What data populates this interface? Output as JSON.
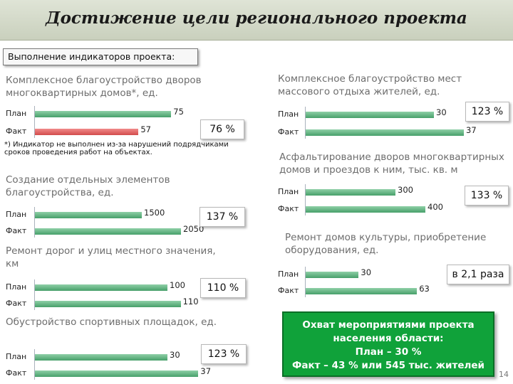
{
  "title": "Достижение цели регионального проекта",
  "subtitle": "Выполнение индикаторов проекта:",
  "row_labels": {
    "plan": "План",
    "fact": "Факт"
  },
  "colors": {
    "bar_green": "#47a06a",
    "bar_red": "#d24c4c",
    "highlight": "#10a23a",
    "title_gray": "#6d6d6d"
  },
  "footnote": "*) Индикатор не выполнен из-за нарушений подрядчиками сроков проведения работ на объектах.",
  "highlight": {
    "line1": "Охват мероприятиями проекта",
    "line2": "населения области:",
    "line3": "План – 30 %",
    "line4": "Факт – 43 % или 545 тыс. жителей"
  },
  "page_number": "14",
  "chart_data": [
    {
      "type": "bar",
      "orientation": "horizontal",
      "title": "Комплексное благоустройство дворов многоквартирных домов*, ед.",
      "categories": [
        "План",
        "Факт"
      ],
      "values": [
        75,
        57
      ],
      "value_labels": [
        "75",
        "57"
      ],
      "colors": [
        "green",
        "red"
      ],
      "percent": "76 %"
    },
    {
      "type": "bar",
      "orientation": "horizontal",
      "title": "Создание отдельных элементов благоустройства, ед.",
      "categories": [
        "План",
        "Факт"
      ],
      "values": [
        1500,
        2050
      ],
      "value_labels": [
        "1500",
        "2050"
      ],
      "colors": [
        "green",
        "green"
      ],
      "percent": "137 %"
    },
    {
      "type": "bar",
      "orientation": "horizontal",
      "title": "Ремонт дорог и улиц местного значения, км",
      "categories": [
        "План",
        "Факт"
      ],
      "values": [
        100,
        110
      ],
      "value_labels": [
        "100",
        "110"
      ],
      "colors": [
        "green",
        "green"
      ],
      "percent": "110 %"
    },
    {
      "type": "bar",
      "orientation": "horizontal",
      "title": "Обустройство спортивных площадок, ед.",
      "categories": [
        "План",
        "Факт"
      ],
      "values": [
        30,
        37
      ],
      "value_labels": [
        "30",
        "37"
      ],
      "colors": [
        "green",
        "green"
      ],
      "percent": "123 %"
    },
    {
      "type": "bar",
      "orientation": "horizontal",
      "title": "Комплексное благоустройство мест массового отдыха жителей, ед.",
      "categories": [
        "План",
        "Факт"
      ],
      "values": [
        30,
        37
      ],
      "value_labels": [
        "30",
        "37"
      ],
      "colors": [
        "green",
        "green"
      ],
      "percent": "123 %"
    },
    {
      "type": "bar",
      "orientation": "horizontal",
      "title": "Асфальтирование дворов многоквартирных домов и проездов к ним, тыс. кв. м",
      "categories": [
        "План",
        "Факт"
      ],
      "values": [
        300,
        400
      ],
      "value_labels": [
        "300",
        "400"
      ],
      "colors": [
        "green",
        "green"
      ],
      "percent": "133 %"
    },
    {
      "type": "bar",
      "orientation": "horizontal",
      "title": "Ремонт домов культуры, приобретение оборудования, ед.",
      "categories": [
        "План",
        "Факт"
      ],
      "values": [
        30,
        63
      ],
      "value_labels": [
        "30",
        "63"
      ],
      "colors": [
        "green",
        "green"
      ],
      "percent": "в 2,1 раза"
    }
  ]
}
